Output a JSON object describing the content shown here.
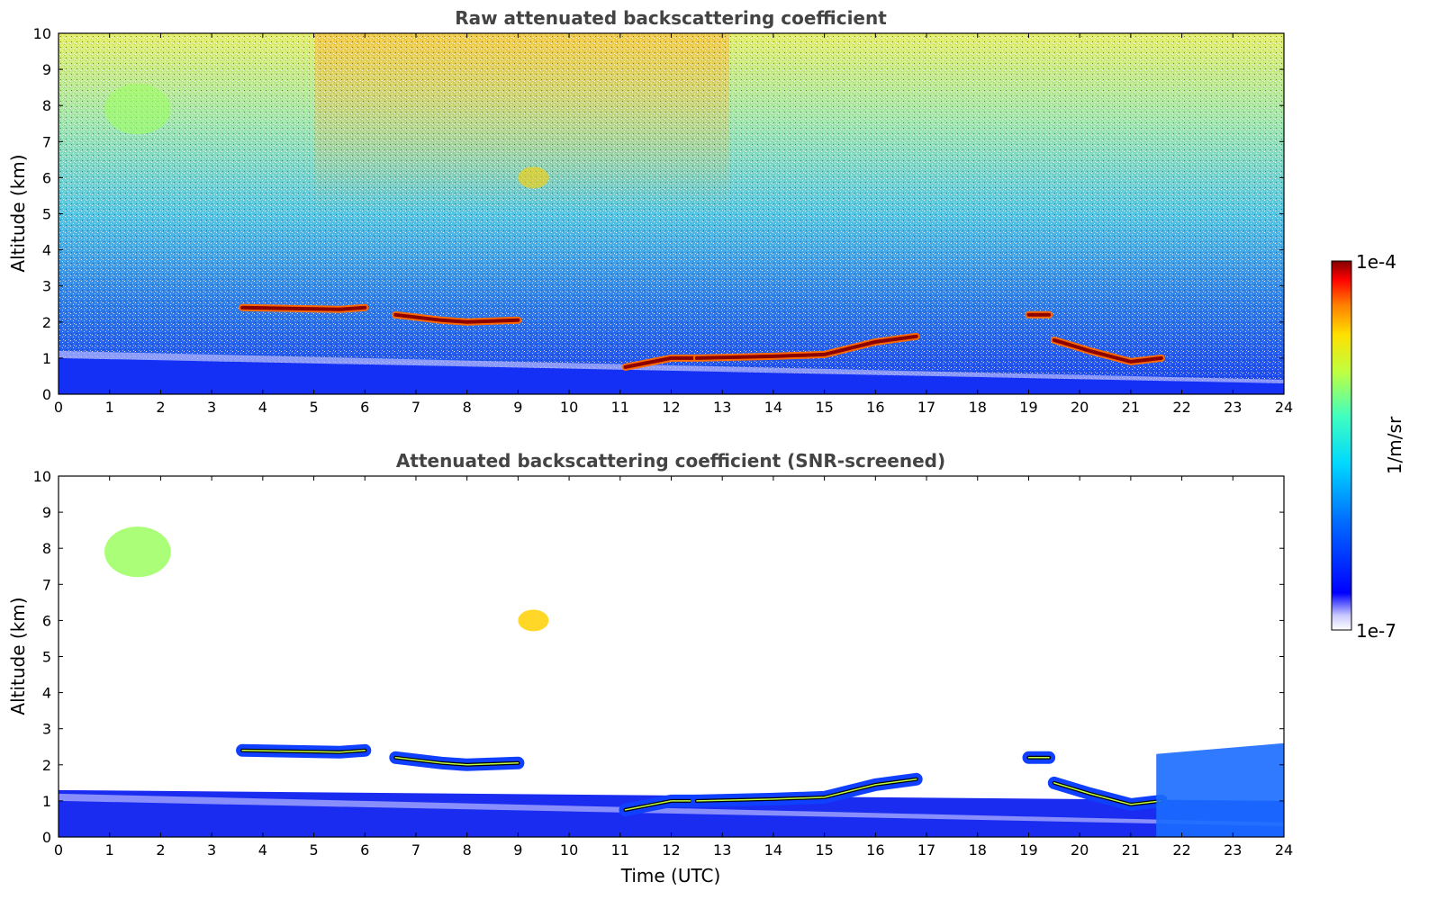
{
  "chart_data": [
    {
      "type": "heatmap",
      "title": "Raw attenuated backscattering coefficient",
      "xlabel": "",
      "ylabel": "Altitude (km)",
      "xlim": [
        0,
        24
      ],
      "ylim": [
        0,
        10
      ],
      "xticks": [
        "0",
        "1",
        "2",
        "3",
        "4",
        "5",
        "6",
        "7",
        "8",
        "9",
        "10",
        "11",
        "12",
        "13",
        "14",
        "15",
        "16",
        "17",
        "18",
        "19",
        "20",
        "21",
        "22",
        "23",
        "24"
      ],
      "yticks": [
        "0",
        "1",
        "2",
        "3",
        "4",
        "5",
        "6",
        "7",
        "8",
        "9",
        "10"
      ],
      "layers": [
        {
          "name": "boundary layer",
          "x": [
            0,
            24
          ],
          "alt_top": [
            1.0,
            0.3
          ],
          "level": "1e-6"
        },
        {
          "name": "cloud",
          "x": [
            3.6,
            5.5,
            6.0
          ],
          "alt": [
            2.4,
            2.35,
            2.4
          ]
        },
        {
          "name": "cloud",
          "x": [
            6.6,
            7.5,
            8.0,
            9.0
          ],
          "alt": [
            2.2,
            2.05,
            2.0,
            2.05
          ]
        },
        {
          "name": "cloud",
          "x": [
            11.1,
            12.0,
            12.5
          ],
          "alt": [
            0.75,
            1.0,
            1.0
          ]
        },
        {
          "name": "cloud",
          "x": [
            12.5,
            14.0,
            15.0,
            16.0,
            16.8
          ],
          "alt": [
            1.0,
            1.05,
            1.1,
            1.45,
            1.6
          ]
        },
        {
          "name": "cloud",
          "x": [
            19.0,
            19.4
          ],
          "alt": [
            2.2,
            2.2
          ]
        },
        {
          "name": "cloud",
          "x": [
            19.5,
            20.2,
            21.0,
            21.6
          ],
          "alt": [
            1.5,
            1.2,
            0.9,
            1.0
          ]
        },
        {
          "name": "cirrus",
          "x": [
            0.9,
            2.2
          ],
          "alt": [
            7.2,
            8.6
          ],
          "level": "1e-5"
        },
        {
          "name": "cirrus",
          "x": [
            9.0,
            9.6
          ],
          "alt": [
            5.7,
            6.3
          ],
          "level": "3e-5"
        }
      ]
    },
    {
      "type": "heatmap",
      "title": "Attenuated backscattering coefficient (SNR-screened)",
      "xlabel": "Time (UTC)",
      "ylabel": "Altitude (km)",
      "xlim": [
        0,
        24
      ],
      "ylim": [
        0,
        10
      ],
      "xticks": [
        "0",
        "1",
        "2",
        "3",
        "4",
        "5",
        "6",
        "7",
        "8",
        "9",
        "10",
        "11",
        "12",
        "13",
        "14",
        "15",
        "16",
        "17",
        "18",
        "19",
        "20",
        "21",
        "22",
        "23",
        "24"
      ],
      "yticks": [
        "0",
        "1",
        "2",
        "3",
        "4",
        "5",
        "6",
        "7",
        "8",
        "9",
        "10"
      ]
    }
  ],
  "colorbar": {
    "top_label": "1e-4",
    "bottom_label": "1e-7",
    "unit_label": "1/m/sr",
    "colormap": [
      "#ffffff",
      "#dcdcff",
      "#0000ff",
      "#0080ff",
      "#00e0ff",
      "#40ffc0",
      "#c0ff40",
      "#ffe000",
      "#ff8000",
      "#ff0000",
      "#800000"
    ]
  },
  "colors": {
    "frame": "#000000",
    "title": "#444444",
    "cloud_core": "#8b0000",
    "cloud_edge": "#ff6a00"
  }
}
